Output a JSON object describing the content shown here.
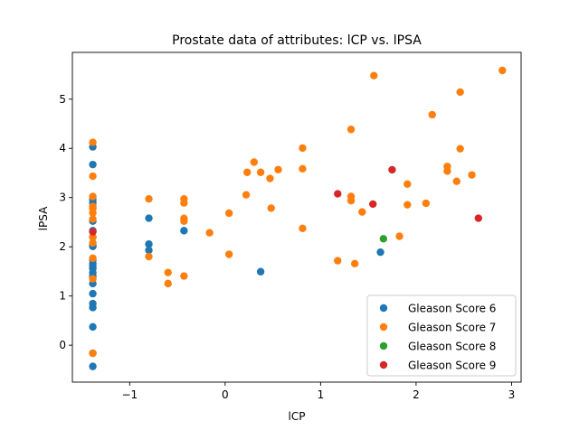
{
  "chart_data": {
    "type": "scatter",
    "title": "Prostate data of attributes: lCP vs. lPSA",
    "xlabel": "lCP",
    "ylabel": "lPSA",
    "xlim": [
      -1.6,
      3.1
    ],
    "ylim": [
      -0.75,
      5.95
    ],
    "xticks": [
      -1,
      0,
      1,
      2,
      3
    ],
    "yticks": [
      0,
      1,
      2,
      3,
      4,
      5
    ],
    "xtick_labels": [
      "−1",
      "0",
      "1",
      "2",
      "3"
    ],
    "ytick_labels": [
      "0",
      "1",
      "2",
      "3",
      "4",
      "5"
    ],
    "grid": false,
    "legend_position": "lower-right",
    "series": [
      {
        "name": "Gleason Score 6",
        "color": "#1f77b4",
        "points": [
          [
            -1.386,
            -0.431
          ],
          [
            -1.386,
            -0.163
          ],
          [
            -1.386,
            0.372
          ],
          [
            -1.386,
            0.765
          ],
          [
            -1.386,
            0.846
          ],
          [
            -1.386,
            1.047
          ],
          [
            -1.386,
            1.253
          ],
          [
            -1.386,
            1.398
          ],
          [
            -1.386,
            1.472
          ],
          [
            -1.386,
            1.558
          ],
          [
            -1.386,
            1.6
          ],
          [
            -1.386,
            1.658
          ],
          [
            -1.386,
            1.732
          ],
          [
            -1.386,
            2.008
          ],
          [
            -1.386,
            2.029
          ],
          [
            -1.386,
            2.196
          ],
          [
            -1.386,
            2.327
          ],
          [
            -1.386,
            2.521
          ],
          [
            -1.386,
            2.89
          ],
          [
            -1.386,
            2.96
          ],
          [
            -1.386,
            3.671
          ],
          [
            -1.386,
            4.03
          ],
          [
            -0.799,
            1.929
          ],
          [
            -0.799,
            2.054
          ],
          [
            -0.799,
            2.581
          ],
          [
            -0.431,
            2.327
          ],
          [
            0.372,
            1.494
          ],
          [
            1.627,
            1.89
          ]
        ]
      },
      {
        "name": "Gleason Score 7",
        "color": "#ff7f0e",
        "points": [
          [
            -1.386,
            -0.163
          ],
          [
            -1.386,
            1.348
          ],
          [
            -1.386,
            1.767
          ],
          [
            -1.386,
            2.079
          ],
          [
            -1.386,
            2.197
          ],
          [
            -1.386,
            2.562
          ],
          [
            -1.386,
            2.69
          ],
          [
            -1.386,
            2.776
          ],
          [
            -1.386,
            2.819
          ],
          [
            -1.386,
            3.022
          ],
          [
            -1.386,
            3.434
          ],
          [
            -1.386,
            4.122
          ],
          [
            -0.799,
            1.8
          ],
          [
            -0.799,
            2.973
          ],
          [
            -0.598,
            1.253
          ],
          [
            -0.598,
            1.477
          ],
          [
            -0.431,
            1.405
          ],
          [
            -0.431,
            2.521
          ],
          [
            -0.431,
            2.578
          ],
          [
            -0.431,
            2.89
          ],
          [
            -0.431,
            2.973
          ],
          [
            -0.163,
            2.284
          ],
          [
            0.041,
            1.847
          ],
          [
            0.041,
            2.683
          ],
          [
            0.22,
            3.056
          ],
          [
            0.231,
            3.513
          ],
          [
            0.303,
            3.72
          ],
          [
            0.372,
            3.513
          ],
          [
            0.47,
            3.389
          ],
          [
            0.482,
            2.785
          ],
          [
            0.556,
            3.568
          ],
          [
            0.811,
            2.374
          ],
          [
            0.811,
            3.585
          ],
          [
            0.811,
            4.006
          ],
          [
            1.179,
            1.717
          ],
          [
            1.319,
            2.937
          ],
          [
            1.319,
            3.023
          ],
          [
            1.319,
            4.385
          ],
          [
            1.358,
            1.658
          ],
          [
            1.435,
            2.708
          ],
          [
            1.558,
            5.478
          ],
          [
            1.826,
            2.213
          ],
          [
            1.909,
            2.854
          ],
          [
            1.909,
            3.274
          ],
          [
            2.104,
            2.884
          ],
          [
            2.169,
            4.684
          ],
          [
            2.327,
            3.538
          ],
          [
            2.327,
            3.632
          ],
          [
            2.425,
            3.331
          ],
          [
            2.462,
            3.992
          ],
          [
            2.462,
            5.143
          ],
          [
            2.584,
            3.46
          ],
          [
            2.904,
            5.583
          ]
        ]
      },
      {
        "name": "Gleason Score 8",
        "color": "#2ca02c",
        "points": [
          [
            1.658,
            2.163
          ]
        ]
      },
      {
        "name": "Gleason Score 9",
        "color": "#d62728",
        "points": [
          [
            -1.386,
            2.303
          ],
          [
            1.179,
            3.076
          ],
          [
            1.548,
            2.867
          ],
          [
            1.749,
            3.565
          ],
          [
            2.653,
            2.58
          ]
        ]
      }
    ]
  }
}
